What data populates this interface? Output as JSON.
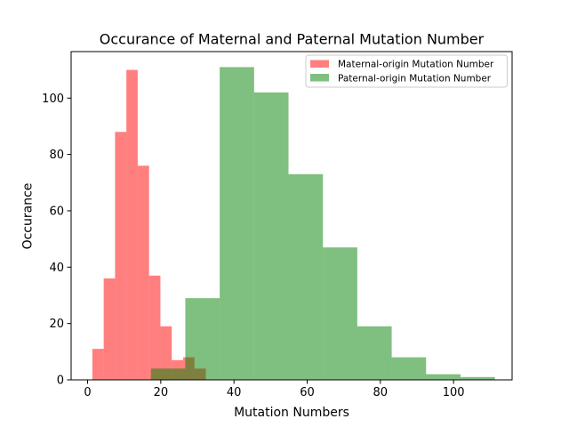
{
  "chart_data": {
    "type": "histogram",
    "title": "Occurance of Maternal and Paternal Mutation Number",
    "xlabel": "Mutation Numbers",
    "ylabel": "Occurance",
    "xlim": [
      -4.5,
      116
    ],
    "ylim": [
      0,
      116.5
    ],
    "xticks": [
      0,
      20,
      40,
      60,
      80,
      100
    ],
    "yticks": [
      0,
      20,
      40,
      60,
      80,
      100
    ],
    "legend_position": "top-right",
    "series": [
      {
        "name": "Maternal-origin Mutation Number",
        "color": "#ff0000",
        "alpha": 0.5,
        "bin_edges": [
          1.3,
          4.4,
          7.5,
          10.6,
          13.7,
          16.8,
          19.9,
          23.0,
          26.1,
          29.2,
          32.3
        ],
        "counts": [
          11,
          36,
          88,
          110,
          76,
          37,
          19,
          7,
          8,
          4
        ]
      },
      {
        "name": "Paternal-origin Mutation Number",
        "color": "#008000",
        "alpha": 0.5,
        "bin_edges": [
          17.3,
          26.7,
          36.1,
          45.5,
          54.9,
          64.3,
          73.7,
          83.1,
          92.5,
          101.9,
          111.3
        ],
        "counts": [
          4,
          29,
          111,
          102,
          73,
          47,
          19,
          8,
          2,
          1
        ]
      }
    ]
  }
}
